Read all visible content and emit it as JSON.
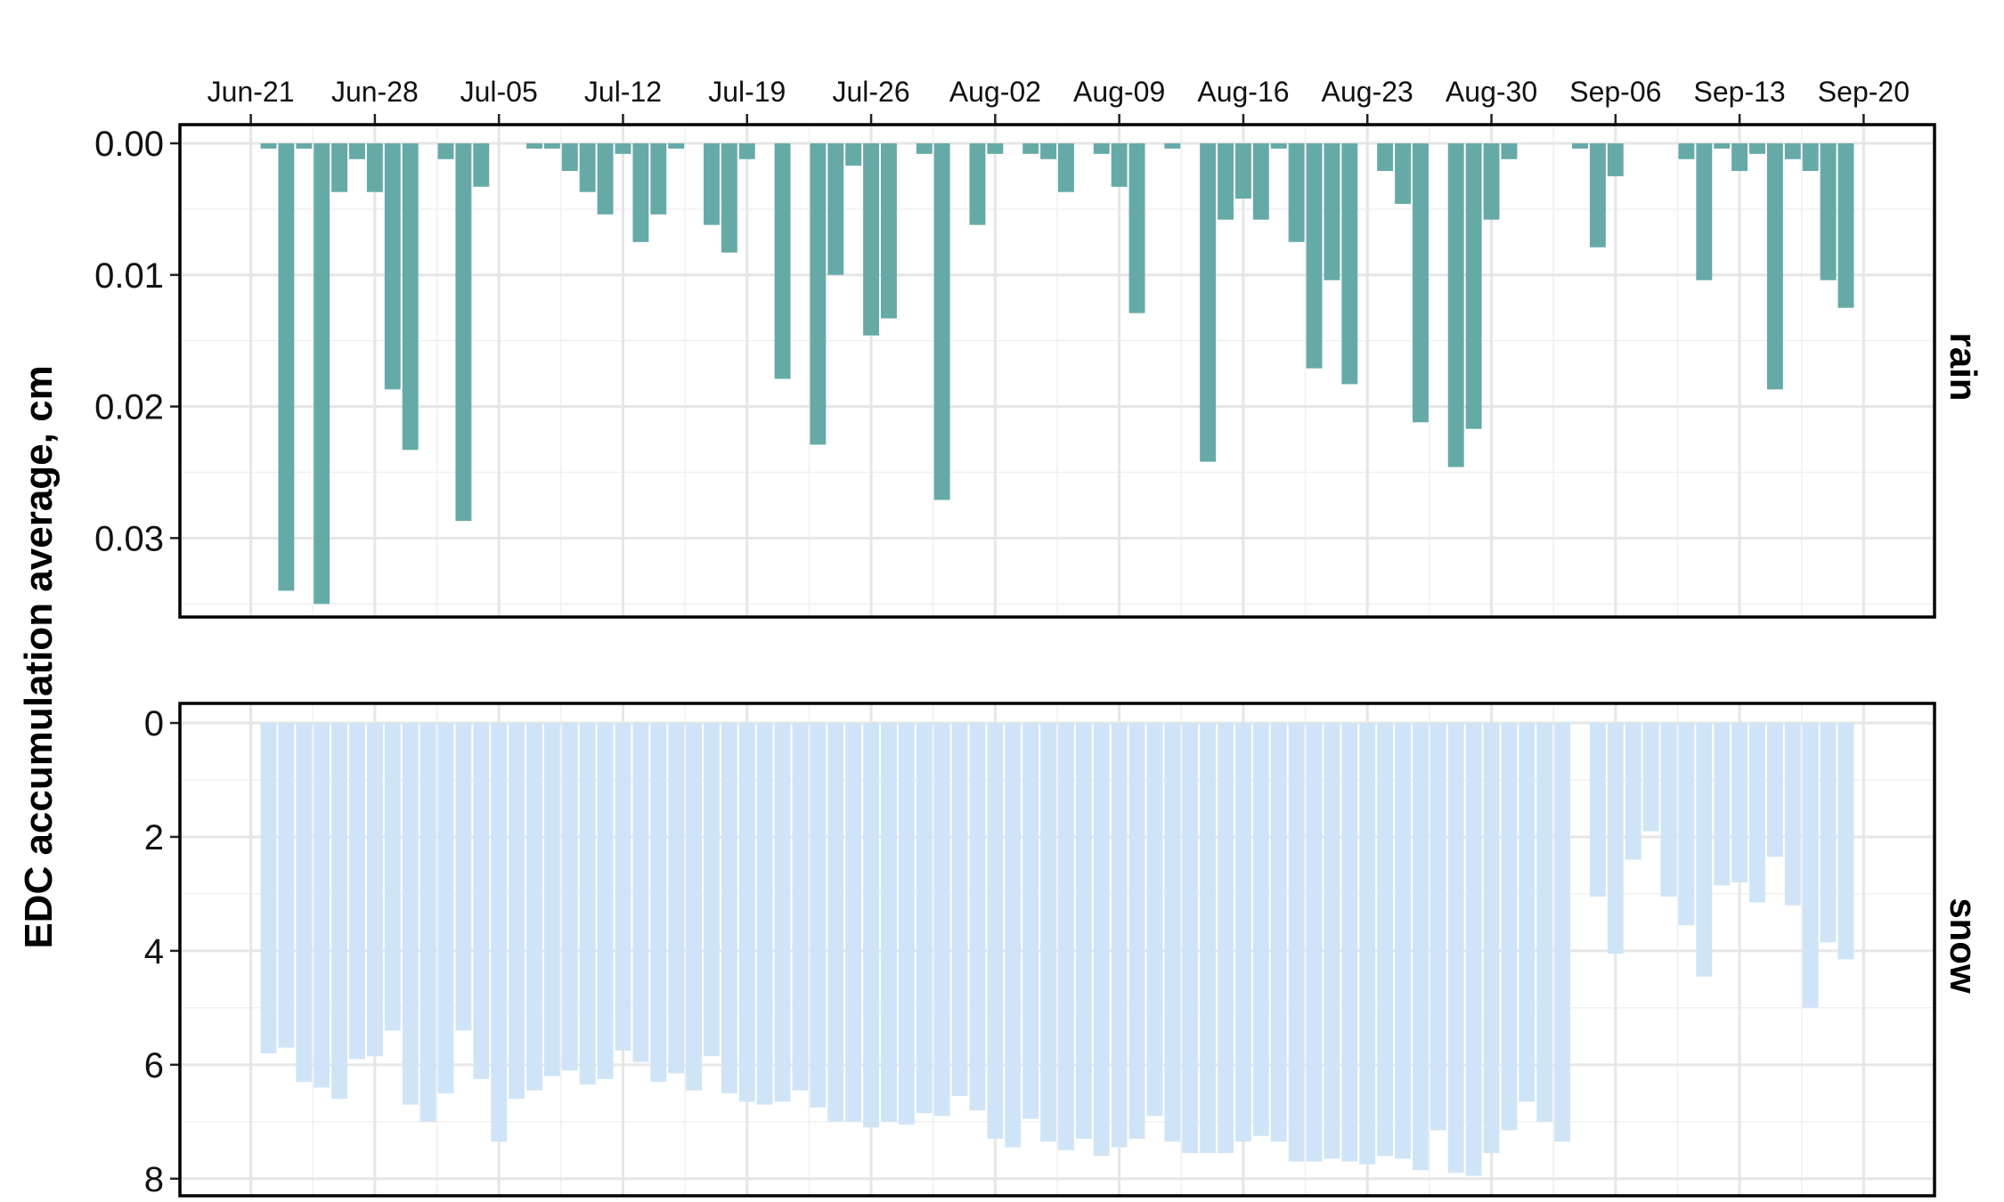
{
  "chart_data": {
    "type": "bar",
    "ylabel": "EDC accumulation average, cm",
    "x_tick_labels": [
      "Jun-21",
      "Jun-28",
      "Jul-05",
      "Jul-12",
      "Jul-19",
      "Jul-26",
      "Aug-02",
      "Aug-09",
      "Aug-16",
      "Aug-23",
      "Aug-30",
      "Sep-06",
      "Sep-13",
      "Sep-20"
    ],
    "x_tick_dates": [
      "2021-06-21",
      "2021-06-28",
      "2021-07-05",
      "2021-07-12",
      "2021-07-19",
      "2021-07-26",
      "2021-08-02",
      "2021-08-09",
      "2021-08-16",
      "2021-08-23",
      "2021-08-30",
      "2021-09-06",
      "2021-09-13",
      "2021-09-20"
    ],
    "x_range": [
      "2021-06-17",
      "2021-09-24"
    ],
    "x_position": "top",
    "grid": true,
    "panels": [
      {
        "strip_label": "rain",
        "color": "#66aaa8",
        "y_reversed": true,
        "ylim": [
          0,
          0.036
        ],
        "y_ticks": [
          0,
          0.01,
          0.02,
          0.03
        ],
        "y_tick_labels": [
          "0.00",
          "0.01",
          "0.02",
          "0.03"
        ],
        "data": [
          {
            "x": "2021-06-22",
            "y": 0.0004
          },
          {
            "x": "2021-06-23",
            "y": 0.034
          },
          {
            "x": "2021-06-24",
            "y": 0.0004
          },
          {
            "x": "2021-06-25",
            "y": 0.035
          },
          {
            "x": "2021-06-26",
            "y": 0.0037
          },
          {
            "x": "2021-06-27",
            "y": 0.0012
          },
          {
            "x": "2021-06-28",
            "y": 0.0037
          },
          {
            "x": "2021-06-29",
            "y": 0.0187
          },
          {
            "x": "2021-06-30",
            "y": 0.0233
          },
          {
            "x": "2021-07-02",
            "y": 0.0012
          },
          {
            "x": "2021-07-03",
            "y": 0.0287
          },
          {
            "x": "2021-07-04",
            "y": 0.0033
          },
          {
            "x": "2021-07-07",
            "y": 0.0004
          },
          {
            "x": "2021-07-08",
            "y": 0.0004
          },
          {
            "x": "2021-07-09",
            "y": 0.0021
          },
          {
            "x": "2021-07-10",
            "y": 0.0037
          },
          {
            "x": "2021-07-11",
            "y": 0.0054
          },
          {
            "x": "2021-07-12",
            "y": 0.0008
          },
          {
            "x": "2021-07-13",
            "y": 0.0075
          },
          {
            "x": "2021-07-14",
            "y": 0.0054
          },
          {
            "x": "2021-07-15",
            "y": 0.0004
          },
          {
            "x": "2021-07-17",
            "y": 0.0062
          },
          {
            "x": "2021-07-18",
            "y": 0.0083
          },
          {
            "x": "2021-07-19",
            "y": 0.0012
          },
          {
            "x": "2021-07-21",
            "y": 0.0179
          },
          {
            "x": "2021-07-23",
            "y": 0.0229
          },
          {
            "x": "2021-07-24",
            "y": 0.01
          },
          {
            "x": "2021-07-25",
            "y": 0.0017
          },
          {
            "x": "2021-07-26",
            "y": 0.0146
          },
          {
            "x": "2021-07-27",
            "y": 0.0133
          },
          {
            "x": "2021-07-29",
            "y": 0.0008
          },
          {
            "x": "2021-07-30",
            "y": 0.0271
          },
          {
            "x": "2021-08-01",
            "y": 0.0062
          },
          {
            "x": "2021-08-02",
            "y": 0.0008
          },
          {
            "x": "2021-08-04",
            "y": 0.0008
          },
          {
            "x": "2021-08-05",
            "y": 0.0012
          },
          {
            "x": "2021-08-06",
            "y": 0.0037
          },
          {
            "x": "2021-08-08",
            "y": 0.0008
          },
          {
            "x": "2021-08-09",
            "y": 0.0033
          },
          {
            "x": "2021-08-10",
            "y": 0.0129
          },
          {
            "x": "2021-08-12",
            "y": 0.0004
          },
          {
            "x": "2021-08-14",
            "y": 0.0242
          },
          {
            "x": "2021-08-15",
            "y": 0.0058
          },
          {
            "x": "2021-08-16",
            "y": 0.0042
          },
          {
            "x": "2021-08-17",
            "y": 0.0058
          },
          {
            "x": "2021-08-18",
            "y": 0.0004
          },
          {
            "x": "2021-08-19",
            "y": 0.0075
          },
          {
            "x": "2021-08-20",
            "y": 0.0171
          },
          {
            "x": "2021-08-21",
            "y": 0.0104
          },
          {
            "x": "2021-08-22",
            "y": 0.0183
          },
          {
            "x": "2021-08-24",
            "y": 0.0021
          },
          {
            "x": "2021-08-25",
            "y": 0.0046
          },
          {
            "x": "2021-08-26",
            "y": 0.0212
          },
          {
            "x": "2021-08-28",
            "y": 0.0246
          },
          {
            "x": "2021-08-29",
            "y": 0.0217
          },
          {
            "x": "2021-08-30",
            "y": 0.0058
          },
          {
            "x": "2021-08-31",
            "y": 0.0012
          },
          {
            "x": "2021-09-04",
            "y": 0.0004
          },
          {
            "x": "2021-09-05",
            "y": 0.0079
          },
          {
            "x": "2021-09-06",
            "y": 0.0025
          },
          {
            "x": "2021-09-10",
            "y": 0.0012
          },
          {
            "x": "2021-09-11",
            "y": 0.0104
          },
          {
            "x": "2021-09-12",
            "y": 0.0004
          },
          {
            "x": "2021-09-13",
            "y": 0.0021
          },
          {
            "x": "2021-09-14",
            "y": 0.0008
          },
          {
            "x": "2021-09-15",
            "y": 0.0187
          },
          {
            "x": "2021-09-16",
            "y": 0.0012
          },
          {
            "x": "2021-09-17",
            "y": 0.0021
          },
          {
            "x": "2021-09-18",
            "y": 0.0104
          },
          {
            "x": "2021-09-19",
            "y": 0.0125
          }
        ]
      },
      {
        "strip_label": "snow",
        "color": "#cfe5f7",
        "y_reversed": true,
        "ylim": [
          0,
          8.3
        ],
        "y_ticks": [
          0,
          2,
          4,
          6,
          8
        ],
        "y_tick_labels": [
          "0",
          "2",
          "4",
          "6",
          "8"
        ],
        "data": [
          {
            "x": "2021-06-22",
            "y": 5.8
          },
          {
            "x": "2021-06-23",
            "y": 5.7
          },
          {
            "x": "2021-06-24",
            "y": 6.3
          },
          {
            "x": "2021-06-25",
            "y": 6.4
          },
          {
            "x": "2021-06-26",
            "y": 6.6
          },
          {
            "x": "2021-06-27",
            "y": 5.9
          },
          {
            "x": "2021-06-28",
            "y": 5.85
          },
          {
            "x": "2021-06-29",
            "y": 5.4
          },
          {
            "x": "2021-06-30",
            "y": 6.7
          },
          {
            "x": "2021-07-01",
            "y": 7.0
          },
          {
            "x": "2021-07-02",
            "y": 6.5
          },
          {
            "x": "2021-07-03",
            "y": 5.4
          },
          {
            "x": "2021-07-04",
            "y": 6.25
          },
          {
            "x": "2021-07-05",
            "y": 7.35
          },
          {
            "x": "2021-07-06",
            "y": 6.6
          },
          {
            "x": "2021-07-07",
            "y": 6.45
          },
          {
            "x": "2021-07-08",
            "y": 6.2
          },
          {
            "x": "2021-07-09",
            "y": 6.1
          },
          {
            "x": "2021-07-10",
            "y": 6.35
          },
          {
            "x": "2021-07-11",
            "y": 6.25
          },
          {
            "x": "2021-07-12",
            "y": 5.75
          },
          {
            "x": "2021-07-13",
            "y": 5.95
          },
          {
            "x": "2021-07-14",
            "y": 6.3
          },
          {
            "x": "2021-07-15",
            "y": 6.15
          },
          {
            "x": "2021-07-16",
            "y": 6.45
          },
          {
            "x": "2021-07-17",
            "y": 5.85
          },
          {
            "x": "2021-07-18",
            "y": 6.5
          },
          {
            "x": "2021-07-19",
            "y": 6.65
          },
          {
            "x": "2021-07-20",
            "y": 6.7
          },
          {
            "x": "2021-07-21",
            "y": 6.65
          },
          {
            "x": "2021-07-22",
            "y": 6.45
          },
          {
            "x": "2021-07-23",
            "y": 6.75
          },
          {
            "x": "2021-07-24",
            "y": 7.0
          },
          {
            "x": "2021-07-25",
            "y": 7.0
          },
          {
            "x": "2021-07-26",
            "y": 7.1
          },
          {
            "x": "2021-07-27",
            "y": 7.0
          },
          {
            "x": "2021-07-28",
            "y": 7.05
          },
          {
            "x": "2021-07-29",
            "y": 6.85
          },
          {
            "x": "2021-07-30",
            "y": 6.9
          },
          {
            "x": "2021-07-31",
            "y": 6.55
          },
          {
            "x": "2021-08-01",
            "y": 6.8
          },
          {
            "x": "2021-08-02",
            "y": 7.3
          },
          {
            "x": "2021-08-03",
            "y": 7.45
          },
          {
            "x": "2021-08-04",
            "y": 6.95
          },
          {
            "x": "2021-08-05",
            "y": 7.35
          },
          {
            "x": "2021-08-06",
            "y": 7.5
          },
          {
            "x": "2021-08-07",
            "y": 7.3
          },
          {
            "x": "2021-08-08",
            "y": 7.6
          },
          {
            "x": "2021-08-09",
            "y": 7.45
          },
          {
            "x": "2021-08-10",
            "y": 7.3
          },
          {
            "x": "2021-08-11",
            "y": 6.9
          },
          {
            "x": "2021-08-12",
            "y": 7.35
          },
          {
            "x": "2021-08-13",
            "y": 7.55
          },
          {
            "x": "2021-08-14",
            "y": 7.55
          },
          {
            "x": "2021-08-15",
            "y": 7.55
          },
          {
            "x": "2021-08-16",
            "y": 7.35
          },
          {
            "x": "2021-08-17",
            "y": 7.25
          },
          {
            "x": "2021-08-18",
            "y": 7.35
          },
          {
            "x": "2021-08-19",
            "y": 7.7
          },
          {
            "x": "2021-08-20",
            "y": 7.7
          },
          {
            "x": "2021-08-21",
            "y": 7.65
          },
          {
            "x": "2021-08-22",
            "y": 7.7
          },
          {
            "x": "2021-08-23",
            "y": 7.75
          },
          {
            "x": "2021-08-24",
            "y": 7.6
          },
          {
            "x": "2021-08-25",
            "y": 7.65
          },
          {
            "x": "2021-08-26",
            "y": 7.85
          },
          {
            "x": "2021-08-27",
            "y": 7.15
          },
          {
            "x": "2021-08-28",
            "y": 7.9
          },
          {
            "x": "2021-08-29",
            "y": 7.95
          },
          {
            "x": "2021-08-30",
            "y": 7.55
          },
          {
            "x": "2021-08-31",
            "y": 7.15
          },
          {
            "x": "2021-09-01",
            "y": 6.65
          },
          {
            "x": "2021-09-02",
            "y": 7.0
          },
          {
            "x": "2021-09-03",
            "y": 7.35
          },
          {
            "x": "2021-09-05",
            "y": 3.05
          },
          {
            "x": "2021-09-06",
            "y": 4.05
          },
          {
            "x": "2021-09-07",
            "y": 2.4
          },
          {
            "x": "2021-09-08",
            "y": 1.9
          },
          {
            "x": "2021-09-09",
            "y": 3.05
          },
          {
            "x": "2021-09-10",
            "y": 3.55
          },
          {
            "x": "2021-09-11",
            "y": 4.45
          },
          {
            "x": "2021-09-12",
            "y": 2.85
          },
          {
            "x": "2021-09-13",
            "y": 2.8
          },
          {
            "x": "2021-09-14",
            "y": 3.15
          },
          {
            "x": "2021-09-15",
            "y": 2.35
          },
          {
            "x": "2021-09-16",
            "y": 3.2
          },
          {
            "x": "2021-09-17",
            "y": 5.0
          },
          {
            "x": "2021-09-18",
            "y": 3.85
          },
          {
            "x": "2021-09-19",
            "y": 4.15
          }
        ]
      }
    ]
  }
}
